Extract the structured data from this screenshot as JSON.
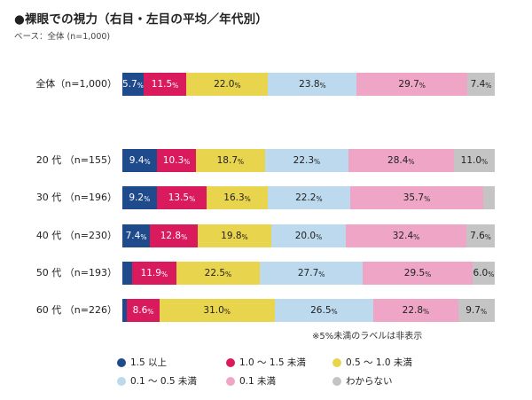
{
  "title": "●裸眼での視力（右目・左目の平均／年代別）",
  "base_note": "ベース：全体 (n=1,000)",
  "footnote": "※5%未満のラベルは非表示",
  "percent_sign": "%",
  "chart_data": {
    "type": "bar",
    "orientation": "horizontal-stacked-100",
    "categories": [
      "全体（n=1,000）",
      "20 代 （n=155）",
      "30 代 （n=196）",
      "40 代 （n=230）",
      "50 代 （n=193）",
      "60 代 （n=226）"
    ],
    "series": [
      {
        "name": "1.5 以上",
        "color": "#1f4a8c",
        "values": [
          5.7,
          9.4,
          9.2,
          7.4,
          2.6,
          1.3
        ],
        "labels": [
          "5.7",
          "9.4",
          "9.2",
          "7.4",
          "",
          ""
        ],
        "label_color": "#ffffff"
      },
      {
        "name": "1.0 〜 1.5 未満",
        "color": "#d91a5c",
        "values": [
          11.5,
          10.3,
          13.5,
          12.8,
          11.9,
          8.6
        ],
        "labels": [
          "11.5",
          "10.3",
          "13.5",
          "12.8",
          "11.9",
          "8.6"
        ],
        "label_color": "#ffffff"
      },
      {
        "name": "0.5 〜 1.0 未満",
        "color": "#e8d44d",
        "values": [
          22.0,
          18.7,
          16.3,
          19.8,
          22.5,
          31.0
        ],
        "labels": [
          "22.0",
          "18.7",
          "16.3",
          "19.8",
          "22.5",
          "31.0"
        ],
        "label_color": "#222222"
      },
      {
        "name": "0.1 〜 0.5 未満",
        "color": "#bcd9ee",
        "values": [
          23.8,
          22.3,
          22.2,
          20.0,
          27.7,
          26.5
        ],
        "labels": [
          "23.8",
          "22.3",
          "22.2",
          "20.0",
          "27.7",
          "26.5"
        ],
        "label_color": "#222222"
      },
      {
        "name": "0.1 未満",
        "color": "#efa6c6",
        "values": [
          29.7,
          28.4,
          35.7,
          32.4,
          29.5,
          22.8
        ],
        "labels": [
          "29.7",
          "28.4",
          "35.7",
          "32.4",
          "29.5",
          "22.8"
        ],
        "label_color": "#222222"
      },
      {
        "name": "わからない",
        "color": "#c4c4c4",
        "values": [
          7.4,
          11.0,
          3.1,
          7.6,
          6.0,
          9.7
        ],
        "labels": [
          "7.4",
          "11.0",
          "",
          "7.6",
          "6.0",
          "9.7"
        ],
        "label_color": "#222222"
      }
    ],
    "xlim": [
      0,
      100
    ],
    "legend_position": "bottom"
  }
}
